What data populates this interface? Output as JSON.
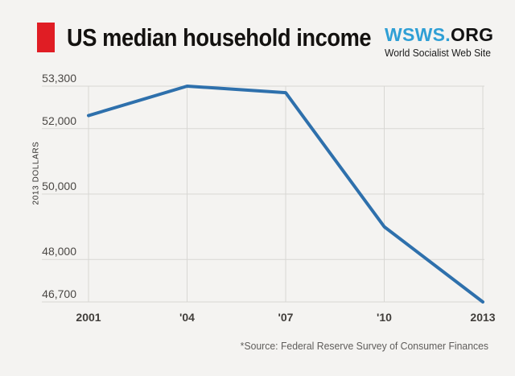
{
  "header": {
    "title": "US median household income",
    "logo": {
      "primary": "WSWS.",
      "secondary": "ORG",
      "tagline": "World Socialist Web Site"
    }
  },
  "chart_data": {
    "type": "line",
    "title": "US median household income",
    "series": [
      {
        "name": "US median household income, 2013 dollars",
        "values": [
          52400,
          53300,
          53100,
          49000,
          46700
        ]
      }
    ],
    "x": [
      2001,
      2004,
      2007,
      2010,
      2013
    ],
    "x_tick_labels": [
      "2001",
      "'04",
      "'07",
      "'10",
      "2013"
    ],
    "y_ticks": [
      {
        "value": 53300,
        "label": "53,300"
      },
      {
        "value": 52000,
        "label": "52,000"
      },
      {
        "value": 50000,
        "label": "50,000"
      },
      {
        "value": 48000,
        "label": "48,000"
      },
      {
        "value": 46700,
        "label": "46,700"
      }
    ],
    "ylim": [
      46700,
      53300
    ],
    "xlabel": "",
    "ylabel": "2013 DOLLARS",
    "grid": true,
    "legend_position": "none",
    "source_note": "*Source: Federal Reserve Survey of Consumer Finances"
  },
  "colors": {
    "background": "#f4f3f1",
    "accent_red": "#e01d24",
    "logo_blue": "#2f9fd5",
    "line_blue": "#2e70ac",
    "gridline": "#d8d7d4",
    "y_tick_label": "#4a4744",
    "x_tick_label": "#403d3a",
    "title_text": "#141210",
    "source_text": "#5f5d5b"
  }
}
